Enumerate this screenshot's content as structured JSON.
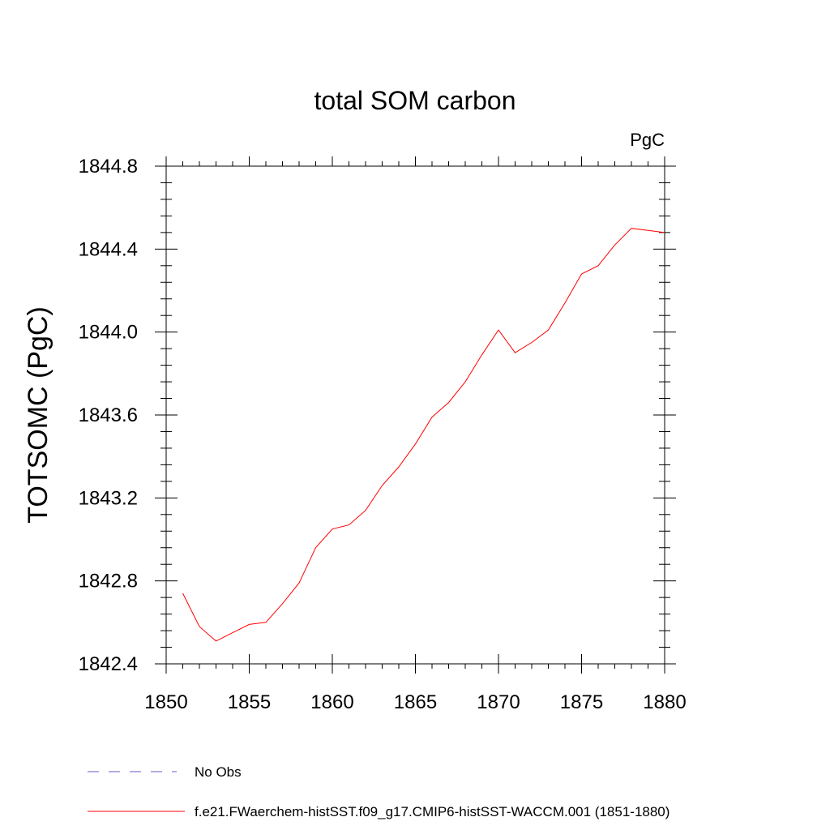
{
  "chart_data": {
    "type": "line",
    "title": "total SOM carbon",
    "unit_label": "PgC",
    "ylabel": "TOTSOMC  (PgC)",
    "xlabel": "",
    "xlim": [
      1850,
      1880
    ],
    "ylim": [
      1842.4,
      1844.8
    ],
    "x_ticks": [
      1850,
      1855,
      1860,
      1865,
      1870,
      1875,
      1880
    ],
    "x_tick_labels": [
      "1850",
      "1855",
      "1860",
      "1865",
      "1870",
      "1875",
      "1880"
    ],
    "y_ticks": [
      1842.4,
      1842.8,
      1843.2,
      1843.6,
      1844.0,
      1844.4,
      1844.8
    ],
    "y_tick_labels": [
      "1842.4",
      "1842.8",
      "1843.2",
      "1843.6",
      "1844.0",
      "1844.4",
      "1844.8"
    ],
    "grid": false,
    "legend_position": "bottom",
    "series": [
      {
        "name": "No Obs",
        "color": "#6a5acd",
        "dash": true,
        "x": [],
        "values": []
      },
      {
        "name": "f.e21.FWaerchem-histSST.f09_g17.CMIP6-histSST-WACCM.001 (1851-1880)",
        "color": "#ff0000",
        "dash": false,
        "x": [
          1851,
          1852,
          1853,
          1854,
          1855,
          1856,
          1857,
          1858,
          1859,
          1860,
          1861,
          1862,
          1863,
          1864,
          1865,
          1866,
          1867,
          1868,
          1869,
          1870,
          1871,
          1872,
          1873,
          1874,
          1875,
          1876,
          1877,
          1878,
          1879,
          1880
        ],
        "values": [
          1842.74,
          1842.58,
          1842.51,
          1842.55,
          1842.59,
          1842.6,
          1842.69,
          1842.79,
          1842.96,
          1843.05,
          1843.07,
          1843.14,
          1843.26,
          1843.35,
          1843.46,
          1843.59,
          1843.66,
          1843.76,
          1843.89,
          1844.01,
          1843.9,
          1843.95,
          1844.01,
          1844.14,
          1844.28,
          1844.32,
          1844.42,
          1844.5,
          1844.49,
          1844.48
        ]
      }
    ]
  }
}
